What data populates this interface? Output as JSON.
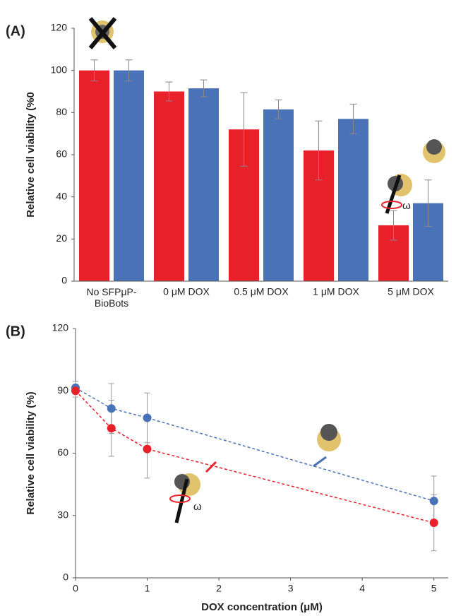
{
  "chart_data": [
    {
      "type": "bar",
      "panel": "(A)",
      "y_label": "Relative cell viability (%0",
      "categories": [
        "No SFPμP-\nBioBots",
        "0 μM DOX",
        "0.5 μM DOX",
        "1 μM DOX",
        "5 μM DOX"
      ],
      "series": [
        {
          "color": "#e8202a",
          "values": [
            100,
            90,
            72,
            62,
            26.5
          ],
          "errors": [
            5,
            4.5,
            17.5,
            14,
            7
          ]
        },
        {
          "color": "#4a72b8",
          "values": [
            100,
            91.5,
            81.5,
            77,
            37
          ],
          "errors": [
            5,
            4,
            4.5,
            7,
            11
          ]
        }
      ],
      "ylim": [
        0,
        120
      ],
      "yticks": [
        0,
        20,
        40,
        60,
        80,
        100,
        120
      ],
      "annotations": [
        "ω"
      ]
    },
    {
      "type": "line",
      "panel": "(B)",
      "x_label": "DOX concentration  (μM)",
      "y_label": "Relative cell viability (%)",
      "x": [
        0,
        0.5,
        1,
        5
      ],
      "series": [
        {
          "color": "#4a72b8",
          "values": [
            91.5,
            81.5,
            77,
            37
          ],
          "errors": [
            3,
            12,
            12,
            12
          ]
        },
        {
          "color": "#e8202a",
          "values": [
            90,
            72,
            62,
            26.5
          ],
          "errors": [
            3,
            13.5,
            14,
            13.5
          ]
        }
      ],
      "xlim": [
        0,
        5.2
      ],
      "xticks": [
        0,
        1,
        2,
        3,
        4,
        5
      ],
      "ylim": [
        0,
        120
      ],
      "yticks": [
        0,
        30,
        60,
        90,
        120
      ],
      "annotations": [
        "ω"
      ]
    }
  ]
}
